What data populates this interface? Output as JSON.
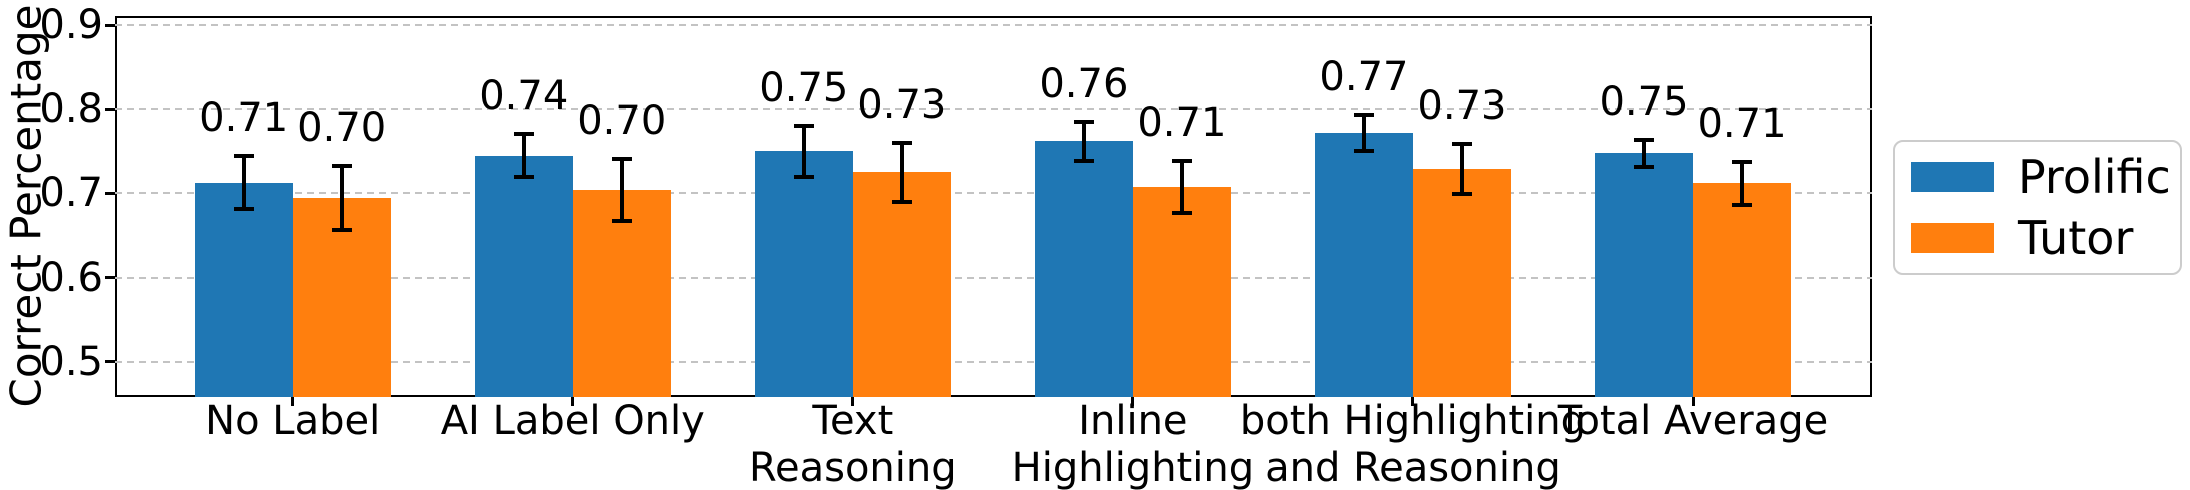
{
  "chart_data": {
    "type": "bar",
    "title": "",
    "xlabel": "",
    "ylabel": "Correct Percentage",
    "ylim": [
      0.458,
      0.911
    ],
    "yticks": [
      0.5,
      0.6,
      0.7,
      0.8,
      0.9
    ],
    "ytick_labels": [
      "0.5",
      "0.6",
      "0.7",
      "0.8",
      "0.9"
    ],
    "grid": "horizontal dashed",
    "legend_position": "outside right",
    "categories": [
      "No Label",
      "AI Label Only",
      "Text\nReasoning",
      "Inline\nHighlighting",
      "both Highlighting\nand Reasoning",
      "Total Average"
    ],
    "series": [
      {
        "name": "Prolific",
        "color": "#1f77b4",
        "values": [
          0.713,
          0.745,
          0.75,
          0.762,
          0.772,
          0.748
        ],
        "labels": [
          "0.71",
          "0.74",
          "0.75",
          "0.76",
          "0.77",
          "0.75"
        ],
        "errors": [
          0.031,
          0.026,
          0.03,
          0.023,
          0.021,
          0.016
        ]
      },
      {
        "name": "Tutor",
        "color": "#ff7f0e",
        "values": [
          0.695,
          0.704,
          0.725,
          0.708,
          0.729,
          0.712
        ],
        "labels": [
          "0.70",
          "0.70",
          "0.73",
          "0.71",
          "0.73",
          "0.71"
        ],
        "errors": [
          0.038,
          0.037,
          0.035,
          0.031,
          0.03,
          0.026
        ]
      }
    ],
    "colors": {
      "prolific": "#1f77b4",
      "tutor": "#ff7f0e",
      "gridline": "#c3c3c3",
      "spine": "#000000",
      "error_bar": "#000000"
    }
  }
}
